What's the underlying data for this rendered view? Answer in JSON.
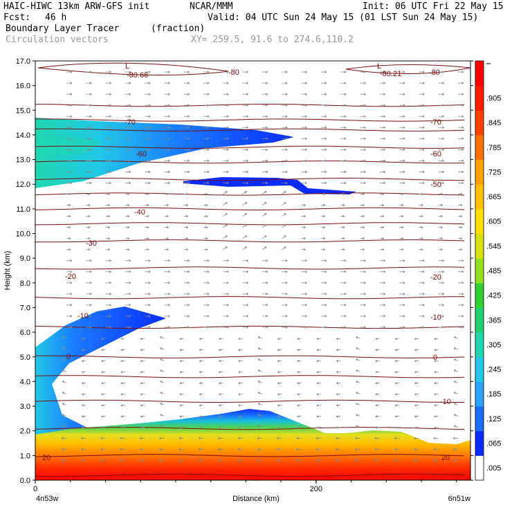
{
  "header": {
    "model": "HAIC-HIWC 13km ARW-GFS init",
    "org": "NCAR/MMM",
    "init": "Init: 06 UTC Fri 22 May 15",
    "fcst_label": "Fcst:",
    "fcst_value": "46 h",
    "valid": "Valid: 04 UTC Sun 24 May 15 (01 LST Sun 24 May 15)",
    "field": "Boundary Layer Tracer",
    "units": "(fraction)",
    "vectors": "Circulation vectors",
    "xy": "XY= 259.5, 91.6 to 274.6,110.2"
  },
  "chart_data": {
    "type": "contour-cross-section",
    "xlabel": "Distance (km)",
    "ylabel": "Height (km)",
    "xlim": [
      0,
      310
    ],
    "ylim": [
      0,
      17
    ],
    "x_ticks": [
      0,
      200
    ],
    "x_tick_labels": [
      "0",
      "200"
    ],
    "x_end_labels": [
      "4n53w",
      "6n51w"
    ],
    "y_ticks": [
      0,
      1,
      2,
      3,
      4,
      5,
      6,
      7,
      8,
      9,
      10,
      11,
      12,
      13,
      14,
      15,
      16,
      17
    ],
    "y_tick_labels": [
      "0.0",
      "1.0",
      "2.0",
      "3.0",
      "4.0",
      "5.0",
      "6.0",
      "7.0",
      "8.0",
      "9.0",
      "10.0",
      "11.0",
      "12.0",
      "13.0",
      "14.0",
      "15.0",
      "16.0",
      "17.0"
    ],
    "colorbar": {
      "levels": [
        ".005",
        ".065",
        ".125",
        ".185",
        ".245",
        ".305",
        ".365",
        ".425",
        ".485",
        ".545",
        ".605",
        ".665",
        ".725",
        ".785",
        ".845",
        ".905"
      ],
      "colors": [
        "#ffffff",
        "#0a2cff",
        "#1a6cff",
        "#2aa0ff",
        "#21c8e8",
        "#20d8b0",
        "#1fd070",
        "#30d030",
        "#90e020",
        "#d8e010",
        "#ffe000",
        "#ffc000",
        "#ffa000",
        "#ff7000",
        "#ff4000",
        "#ff1a00",
        "#ff0000"
      ]
    },
    "temperature_contours": {
      "label_values": [
        "-80.66",
        "-80",
        "-80.21",
        "-80",
        "-70",
        "-70",
        "-60",
        "-60",
        "-50",
        "-40",
        "-30",
        "-20",
        "-20",
        "-10",
        "-10",
        "0",
        "0",
        "-10",
        "20",
        "20"
      ],
      "low_markers": [
        "L",
        "L"
      ],
      "line_color": "#7a0a0a"
    },
    "tracer_regions": {
      "surface_layer_top_km": 1.8,
      "upper_plume_km": [
        12.4,
        14.8
      ],
      "thin_layer_km": [
        11.7,
        12.3
      ]
    }
  }
}
